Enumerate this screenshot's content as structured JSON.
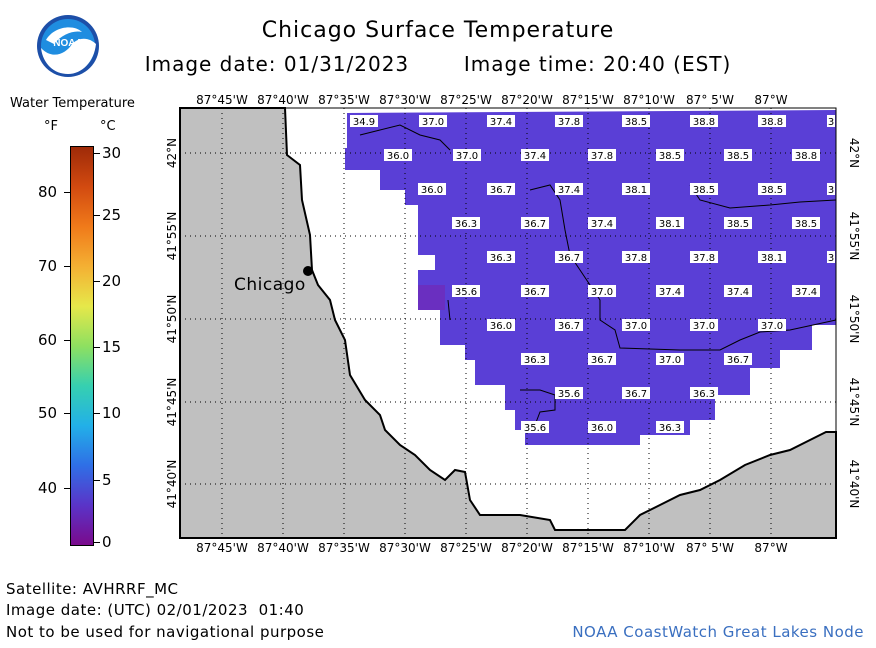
{
  "header": {
    "title": "Chicago Surface Temperature",
    "image_date": "Image date: 01/31/2023",
    "image_time": "Image time: 20:40 (EST)"
  },
  "logo": {
    "text": "NOAA",
    "icon": "noaa-logo-icon"
  },
  "legend": {
    "title": "Water Temperature",
    "unit_f": "°F",
    "unit_c": "°C",
    "fahrenheit_ticks": [
      "80",
      "70",
      "60",
      "50",
      "40"
    ],
    "celsius_ticks": [
      "30",
      "25",
      "20",
      "15",
      "10",
      "5",
      "0"
    ],
    "celsius_range": [
      0,
      30
    ],
    "colors": [
      "#7a0a8c",
      "#5a34c8",
      "#2f6fe6",
      "#22b0e8",
      "#36d0b0",
      "#8ee060",
      "#e6e84a",
      "#f4b033",
      "#f07a1a",
      "#d24a10",
      "#9e2a08"
    ]
  },
  "map": {
    "lon_labels": [
      "87°45'W",
      "87°40'W",
      "87°35'W",
      "87°30'W",
      "87°25'W",
      "87°20'W",
      "87°15'W",
      "87°10'W",
      "87° 5'W",
      "87°W"
    ],
    "lat_labels": [
      "42°N",
      "41°55'N",
      "41°50'N",
      "41°45'N",
      "41°40'N"
    ],
    "land_color": "#c0c0c0",
    "water_color": "#5a3fd6",
    "city": {
      "name": "Chicago"
    },
    "temperature_labels": [
      {
        "text": "34.9"
      },
      {
        "text": "37.0"
      },
      {
        "text": "37.4"
      },
      {
        "text": "37.8"
      },
      {
        "text": "38.5"
      },
      {
        "text": "38.8"
      },
      {
        "text": "38.8"
      },
      {
        "text": "3"
      },
      {
        "text": "36.0"
      },
      {
        "text": "37.0"
      },
      {
        "text": "37.4"
      },
      {
        "text": "37.8"
      },
      {
        "text": "38.5"
      },
      {
        "text": "38.5"
      },
      {
        "text": "38.8"
      },
      {
        "text": "36.0"
      },
      {
        "text": "36.7"
      },
      {
        "text": "37.4"
      },
      {
        "text": "38.1"
      },
      {
        "text": "38.5"
      },
      {
        "text": "38.5"
      },
      {
        "text": "3"
      },
      {
        "text": "36.3"
      },
      {
        "text": "36.7"
      },
      {
        "text": "37.4"
      },
      {
        "text": "38.1"
      },
      {
        "text": "38.5"
      },
      {
        "text": "38.5"
      },
      {
        "text": "36.3"
      },
      {
        "text": "36.7"
      },
      {
        "text": "37.8"
      },
      {
        "text": "37.8"
      },
      {
        "text": "38.1"
      },
      {
        "text": "3"
      },
      {
        "text": "35.6"
      },
      {
        "text": "36.7"
      },
      {
        "text": "37.0"
      },
      {
        "text": "37.4"
      },
      {
        "text": "37.4"
      },
      {
        "text": "37.4"
      },
      {
        "text": "36.0"
      },
      {
        "text": "36.7"
      },
      {
        "text": "37.0"
      },
      {
        "text": "37.0"
      },
      {
        "text": "37.0"
      },
      {
        "text": "36.3"
      },
      {
        "text": "36.7"
      },
      {
        "text": "37.0"
      },
      {
        "text": "36.7"
      },
      {
        "text": "35.6"
      },
      {
        "text": "36.7"
      },
      {
        "text": "36.3"
      },
      {
        "text": "35.6"
      },
      {
        "text": "36.0"
      },
      {
        "text": "36.3"
      }
    ]
  },
  "footer": {
    "satellite": "Satellite: AVHRRF_MC",
    "utc_date": "Image date: (UTC) 02/01/2023  01:40",
    "disclaimer": "Not to be used for navigational purpose",
    "node": "NOAA CoastWatch Great Lakes Node"
  }
}
